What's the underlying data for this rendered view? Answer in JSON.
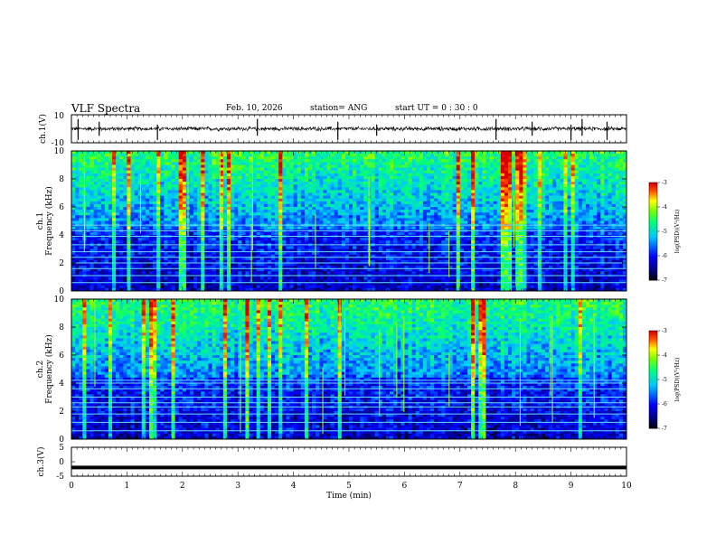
{
  "header": {
    "title": "VLF Spectra",
    "date": "Feb. 10, 2026",
    "station": "station= ANG",
    "start": "start  UT =   0  : 30 : 0"
  },
  "chart_data": [
    {
      "type": "line",
      "name": "ch1-waveform",
      "ylabel": "ch.1(V)",
      "xlim": [
        0,
        10
      ],
      "ylim": [
        -10,
        10
      ],
      "yticks": [
        "10",
        "-10"
      ],
      "baseline": 0,
      "noise_amplitude": 1.2,
      "spike_times_min": [
        0.12,
        0.5,
        1.55,
        3.35,
        4.8,
        5.5,
        7.65,
        8.3,
        9.0,
        9.2,
        9.65
      ]
    },
    {
      "type": "heatmap",
      "name": "ch1-spectrogram",
      "ylabel": "ch.1\nFrequency (kHz)",
      "xlim": [
        0,
        10
      ],
      "ylim": [
        0,
        10
      ],
      "yticks": [
        "0",
        "2",
        "4",
        "6",
        "8",
        "10"
      ],
      "colorbar": {
        "label": "log(PSD)(V²/Hz)",
        "range": [
          -7,
          -3
        ],
        "ticks": [
          "-3",
          "-4",
          "-5",
          "-6",
          "-7"
        ]
      },
      "line_freqs_khz": [
        0.6,
        1.1,
        1.6,
        2.0,
        2.4,
        2.8,
        3.3,
        3.9,
        4.3,
        4.7
      ]
    },
    {
      "type": "heatmap",
      "name": "ch2-spectrogram",
      "ylabel": "ch.2\nFrequency (kHz)",
      "xlim": [
        0,
        10
      ],
      "ylim": [
        0,
        10
      ],
      "yticks": [
        "0",
        "2",
        "4",
        "6",
        "8",
        "10"
      ],
      "colorbar": {
        "label": "log(PSD)(V²/Hz)",
        "range": [
          -7,
          -3
        ],
        "ticks": [
          "-3",
          "-4",
          "-5",
          "-6",
          "-7"
        ]
      },
      "line_freqs_khz": [
        0.6,
        1.2,
        1.8,
        2.3,
        2.6,
        3.0,
        3.6,
        4.0,
        4.2
      ]
    },
    {
      "type": "line",
      "name": "ch3-waveform",
      "ylabel": "ch.3(V)",
      "xlim": [
        0,
        10
      ],
      "ylim": [
        -5,
        5
      ],
      "yticks": [
        "5",
        "0",
        "-5"
      ],
      "level": -2.0
    }
  ],
  "xaxis": {
    "label": "Time  (min)",
    "ticks": [
      "0",
      "1",
      "2",
      "3",
      "4",
      "5",
      "6",
      "7",
      "8",
      "9",
      "10"
    ]
  }
}
